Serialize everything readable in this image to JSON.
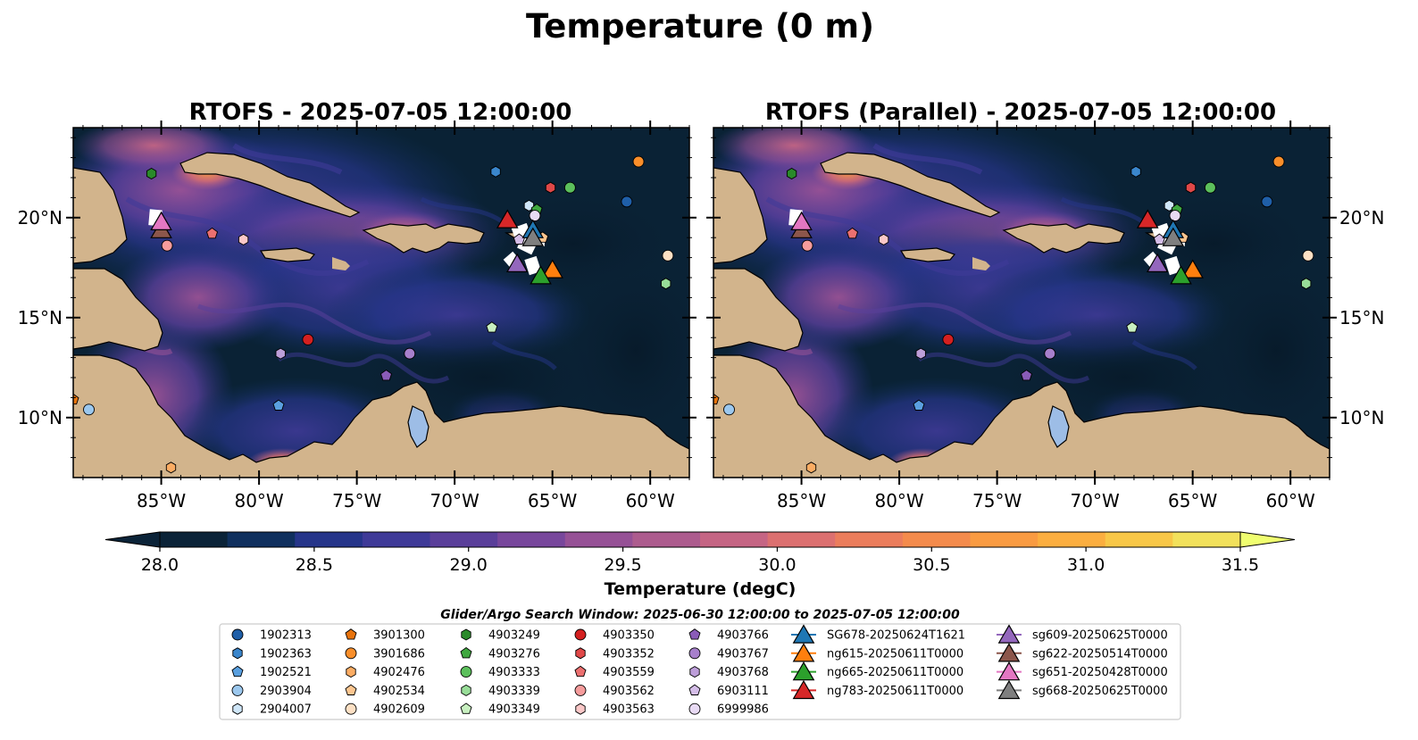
{
  "title": "Temperature (0 m)",
  "panels": [
    {
      "title": "RTOFS - 2025-07-05 12:00:00"
    },
    {
      "title": "RTOFS (Parallel) - 2025-07-05 12:00:00"
    }
  ],
  "lat_ticks": [
    "20°N",
    "15°N",
    "10°N"
  ],
  "lon_ticks": [
    "85°W",
    "80°W",
    "75°W",
    "70°W",
    "65°W",
    "60°W"
  ],
  "colorbar": {
    "label": "Temperature (degC)",
    "min": 28.0,
    "max": 31.5,
    "ticks": [
      "28.0",
      "28.5",
      "29.0",
      "29.5",
      "30.0",
      "30.5",
      "31.0",
      "31.5"
    ],
    "colors": [
      "#0b2338",
      "#10305e",
      "#26358a",
      "#3f3a98",
      "#5a3f9a",
      "#78479c",
      "#965196",
      "#ad5c8e",
      "#c56584",
      "#dc7070",
      "#eb7d5c",
      "#f48b4c",
      "#f99b42",
      "#fbae40",
      "#f8c748",
      "#f2e15c"
    ]
  },
  "land_color": "#d2b48c",
  "ocean_base_color": "#0a2235",
  "legend": {
    "header": "Glider/Argo Search Window: 2025-06-30 12:00:00 to 2025-07-05 12:00:00",
    "columns": [
      [
        {
          "label": "1902313",
          "marker": "circle",
          "color": "#1f5fa8"
        },
        {
          "label": "1902363",
          "marker": "hexagon",
          "color": "#3a86cc"
        },
        {
          "label": "1902521",
          "marker": "pentagon",
          "color": "#5aa0e0"
        },
        {
          "label": "2903904",
          "marker": "circle",
          "color": "#9cc8ee"
        },
        {
          "label": "2904007",
          "marker": "hexagon",
          "color": "#cfe6f8"
        }
      ],
      [
        {
          "label": "3901300",
          "marker": "pentagon",
          "color": "#e8730c"
        },
        {
          "label": "3901686",
          "marker": "circle",
          "color": "#f98e2a"
        },
        {
          "label": "4902476",
          "marker": "hexagon",
          "color": "#fbac63"
        },
        {
          "label": "4902534",
          "marker": "pentagon",
          "color": "#fdc690"
        },
        {
          "label": "4902609",
          "marker": "circle",
          "color": "#fde0c4"
        }
      ],
      [
        {
          "label": "4903249",
          "marker": "hexagon",
          "color": "#2a8a2a"
        },
        {
          "label": "4903276",
          "marker": "pentagon",
          "color": "#3fa83f"
        },
        {
          "label": "4903333",
          "marker": "circle",
          "color": "#5cc05c"
        },
        {
          "label": "4903339",
          "marker": "hexagon",
          "color": "#98dd98"
        },
        {
          "label": "4903349",
          "marker": "pentagon",
          "color": "#c8f0c0"
        }
      ],
      [
        {
          "label": "4903350",
          "marker": "circle",
          "color": "#d42020"
        },
        {
          "label": "4903352",
          "marker": "hexagon",
          "color": "#e04848"
        },
        {
          "label": "4903559",
          "marker": "pentagon",
          "color": "#ec7070"
        },
        {
          "label": "4903562",
          "marker": "circle",
          "color": "#f59c9c"
        },
        {
          "label": "4903563",
          "marker": "hexagon",
          "color": "#fbc8c8"
        }
      ],
      [
        {
          "label": "4903766",
          "marker": "pentagon",
          "color": "#8a5cb8"
        },
        {
          "label": "4903767",
          "marker": "circle",
          "color": "#a77fcc"
        },
        {
          "label": "4903768",
          "marker": "hexagon",
          "color": "#bd9ed9"
        },
        {
          "label": "6903111",
          "marker": "pentagon",
          "color": "#d4bde8"
        },
        {
          "label": "6999986",
          "marker": "circle",
          "color": "#e8daf4"
        }
      ],
      [
        {
          "label": "SG678-20250624T1621",
          "marker": "triangle",
          "color": "#1f77b4"
        },
        {
          "label": "ng615-20250611T0000",
          "marker": "triangle",
          "color": "#ff7f0e"
        },
        {
          "label": "ng665-20250611T0000",
          "marker": "triangle",
          "color": "#2ca02c"
        },
        {
          "label": "ng783-20250611T0000",
          "marker": "triangle",
          "color": "#d62728"
        }
      ],
      [
        {
          "label": "sg609-20250625T0000",
          "marker": "triangle",
          "color": "#9467bd"
        },
        {
          "label": "sg622-20250514T0000",
          "marker": "triangle",
          "color": "#8c564b"
        },
        {
          "label": "sg651-20250428T0000",
          "marker": "triangle",
          "color": "#e377c2"
        },
        {
          "label": "sg668-20250625T0000",
          "marker": "triangle",
          "color": "#7f7f7f"
        }
      ]
    ]
  },
  "chart_data": {
    "type": "heatmap",
    "title": "Temperature (0 m)",
    "xlabel": "",
    "ylabel": "",
    "colorbar_label": "Temperature (degC)",
    "value_range": [
      28.0,
      31.5
    ],
    "lon_range": [
      -89.5,
      -58.0
    ],
    "lat_range": [
      7.0,
      24.5
    ],
    "grid": false,
    "legend_position": "bottom",
    "argo_floats": [
      {
        "id": "1902313",
        "lon": -61.2,
        "lat": 20.8,
        "marker": "circle",
        "color": "#1f5fa8"
      },
      {
        "id": "1902363",
        "lon": -67.9,
        "lat": 22.3,
        "marker": "hexagon",
        "color": "#3a86cc"
      },
      {
        "id": "1902521",
        "lon": -79.0,
        "lat": 10.6,
        "marker": "pentagon",
        "color": "#5aa0e0"
      },
      {
        "id": "2903904",
        "lon": -88.7,
        "lat": 10.4,
        "marker": "circle",
        "color": "#9cc8ee"
      },
      {
        "id": "2904007",
        "lon": -66.2,
        "lat": 20.6,
        "marker": "hexagon",
        "color": "#cfe6f8"
      },
      {
        "id": "3901300",
        "lon": -89.5,
        "lat": 10.9,
        "marker": "pentagon",
        "color": "#e8730c"
      },
      {
        "id": "3901686",
        "lon": -60.6,
        "lat": 22.8,
        "marker": "circle",
        "color": "#f98e2a"
      },
      {
        "id": "4902476",
        "lon": -84.5,
        "lat": 7.5,
        "marker": "hexagon",
        "color": "#fbac63"
      },
      {
        "id": "4902534",
        "lon": -65.5,
        "lat": 19.0,
        "marker": "pentagon",
        "color": "#fdc690"
      },
      {
        "id": "4902609",
        "lon": -59.1,
        "lat": 18.1,
        "marker": "circle",
        "color": "#fde0c4"
      },
      {
        "id": "4903249",
        "lon": -85.5,
        "lat": 22.2,
        "marker": "hexagon",
        "color": "#2a8a2a"
      },
      {
        "id": "4903276",
        "lon": -65.8,
        "lat": 20.4,
        "marker": "pentagon",
        "color": "#3fa83f"
      },
      {
        "id": "4903333",
        "lon": -64.1,
        "lat": 21.5,
        "marker": "circle",
        "color": "#5cc05c"
      },
      {
        "id": "4903339",
        "lon": -59.2,
        "lat": 16.7,
        "marker": "hexagon",
        "color": "#98dd98"
      },
      {
        "id": "4903349",
        "lon": -68.1,
        "lat": 14.5,
        "marker": "pentagon",
        "color": "#c8f0c0"
      },
      {
        "id": "4903350",
        "lon": -77.5,
        "lat": 13.9,
        "marker": "circle",
        "color": "#d42020"
      },
      {
        "id": "4903352",
        "lon": -65.1,
        "lat": 21.5,
        "marker": "hexagon",
        "color": "#e04848"
      },
      {
        "id": "4903559",
        "lon": -82.4,
        "lat": 19.2,
        "marker": "pentagon",
        "color": "#ec7070"
      },
      {
        "id": "4903562",
        "lon": -84.7,
        "lat": 18.6,
        "marker": "circle",
        "color": "#f59c9c"
      },
      {
        "id": "4903563",
        "lon": -80.8,
        "lat": 18.9,
        "marker": "hexagon",
        "color": "#fbc8c8"
      },
      {
        "id": "4903766",
        "lon": -73.5,
        "lat": 12.1,
        "marker": "pentagon",
        "color": "#8a5cb8"
      },
      {
        "id": "4903767",
        "lon": -72.3,
        "lat": 13.2,
        "marker": "circle",
        "color": "#a77fcc"
      },
      {
        "id": "4903768",
        "lon": -78.9,
        "lat": 13.2,
        "marker": "hexagon",
        "color": "#bd9ed9"
      },
      {
        "id": "6903111",
        "lon": -66.7,
        "lat": 18.9,
        "marker": "pentagon",
        "color": "#d4bde8"
      },
      {
        "id": "6999986",
        "lon": -65.9,
        "lat": 20.1,
        "marker": "circle",
        "color": "#e8daf4"
      }
    ],
    "gliders": [
      {
        "id": "SG678-20250624T1621",
        "lon": -66.0,
        "lat": 19.4,
        "color": "#1f77b4"
      },
      {
        "id": "ng615-20250611T0000",
        "lon": -65.0,
        "lat": 17.4,
        "color": "#ff7f0e"
      },
      {
        "id": "ng665-20250611T0000",
        "lon": -65.6,
        "lat": 17.1,
        "color": "#2ca02c"
      },
      {
        "id": "ng783-20250611T0000",
        "lon": -67.3,
        "lat": 19.9,
        "color": "#d62728"
      },
      {
        "id": "sg609-20250625T0000",
        "lon": -66.8,
        "lat": 17.7,
        "color": "#9467bd"
      },
      {
        "id": "sg622-20250514T0000",
        "lon": -85.0,
        "lat": 19.4,
        "color": "#8c564b"
      },
      {
        "id": "sg651-20250428T0000",
        "lon": -85.0,
        "lat": 19.8,
        "color": "#e377c2"
      },
      {
        "id": "sg668-20250625T0000",
        "lon": -66.0,
        "lat": 19.0,
        "color": "#7f7f7f"
      }
    ]
  }
}
